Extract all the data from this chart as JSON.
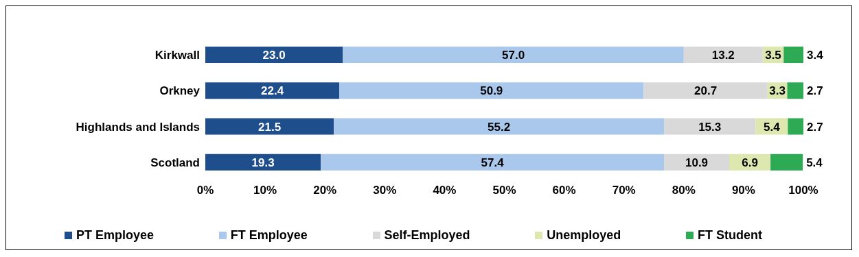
{
  "chart_data": {
    "type": "bar",
    "orientation": "horizontal",
    "stacked": true,
    "legend": "bottom",
    "grid": false,
    "categories": [
      "Kirkwall",
      "Orkney",
      "Highlands and Islands",
      "Scotland"
    ],
    "xlim": [
      0,
      100
    ],
    "xticks": [
      {
        "value": 0,
        "label": "0%"
      },
      {
        "value": 10,
        "label": "10%"
      },
      {
        "value": 20,
        "label": "20%"
      },
      {
        "value": 30,
        "label": "30%"
      },
      {
        "value": 40,
        "label": "40%"
      },
      {
        "value": 50,
        "label": "50%"
      },
      {
        "value": 60,
        "label": "60%"
      },
      {
        "value": 70,
        "label": "70%"
      },
      {
        "value": 80,
        "label": "80%"
      },
      {
        "value": 90,
        "label": "90%"
      },
      {
        "value": 100,
        "label": "100%"
      }
    ],
    "series": [
      {
        "name": "PT Employee",
        "color": "#1f4e8c",
        "values": [
          23.0,
          22.4,
          21.5,
          19.3
        ],
        "value_labels": [
          "23.0",
          "22.4",
          "21.5",
          "19.3"
        ]
      },
      {
        "name": "FT Employee",
        "color": "#aac8ec",
        "values": [
          57.0,
          50.9,
          55.2,
          57.4
        ],
        "value_labels": [
          "57.0",
          "50.9",
          "55.2",
          "57.4"
        ]
      },
      {
        "name": "Self-Employed",
        "color": "#d9d9d9",
        "values": [
          13.2,
          20.7,
          15.3,
          10.9
        ],
        "value_labels": [
          "13.2",
          "20.7",
          "15.3",
          "10.9"
        ]
      },
      {
        "name": "Unemployed",
        "color": "#dce8b0",
        "values": [
          3.5,
          3.3,
          5.4,
          6.9
        ],
        "value_labels": [
          "3.5",
          "3.3",
          "5.4",
          "6.9"
        ]
      },
      {
        "name": "FT Student",
        "color": "#2eaa55",
        "values": [
          3.4,
          2.7,
          2.7,
          5.4
        ],
        "value_labels": [
          "3.4",
          "2.7",
          "2.7",
          "5.4"
        ]
      }
    ]
  }
}
